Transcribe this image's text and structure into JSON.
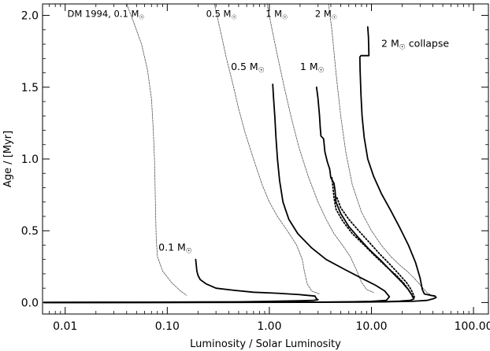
{
  "chart_data": {
    "type": "line",
    "xlabel": "Luminosity / Solar Luminosity",
    "ylabel": "Age / [Myr]",
    "xscale": "log",
    "xlim": [
      0.006,
      140
    ],
    "ylim": [
      -0.08,
      2.08
    ],
    "x_ticks": [
      {
        "value": 0.01,
        "label": "0.01"
      },
      {
        "value": 0.1,
        "label": "0.10"
      },
      {
        "value": 1,
        "label": "1.00"
      },
      {
        "value": 10,
        "label": "10.00"
      },
      {
        "value": 100,
        "label": "100.00"
      }
    ],
    "y_ticks": [
      {
        "value": 0.0,
        "label": "0.0"
      },
      {
        "value": 0.5,
        "label": "0.5"
      },
      {
        "value": 1.0,
        "label": "1.0"
      },
      {
        "value": 1.5,
        "label": "1.5"
      },
      {
        "value": 2.0,
        "label": "2.0"
      }
    ],
    "grid": false,
    "series": [
      {
        "style": "dm-thin",
        "points": [
          [
            0.04,
            2.08
          ],
          [
            0.047,
            1.95
          ],
          [
            0.056,
            1.8
          ],
          [
            0.064,
            1.62
          ],
          [
            0.07,
            1.42
          ],
          [
            0.073,
            1.2
          ],
          [
            0.075,
            1.0
          ],
          [
            0.076,
            0.8
          ],
          [
            0.077,
            0.6
          ],
          [
            0.078,
            0.45
          ],
          [
            0.08,
            0.32
          ],
          [
            0.09,
            0.22
          ],
          [
            0.11,
            0.14
          ],
          [
            0.135,
            0.08
          ],
          [
            0.155,
            0.05
          ]
        ]
      },
      {
        "style": "dm-thin",
        "points": [
          [
            0.29,
            2.08
          ],
          [
            0.33,
            1.9
          ],
          [
            0.38,
            1.7
          ],
          [
            0.44,
            1.52
          ],
          [
            0.5,
            1.35
          ],
          [
            0.58,
            1.18
          ],
          [
            0.7,
            1.0
          ],
          [
            0.85,
            0.82
          ],
          [
            1.0,
            0.7
          ],
          [
            1.2,
            0.6
          ],
          [
            1.5,
            0.5
          ],
          [
            1.85,
            0.4
          ],
          [
            2.1,
            0.3
          ],
          [
            2.2,
            0.22
          ],
          [
            2.35,
            0.13
          ],
          [
            2.6,
            0.08
          ],
          [
            3.1,
            0.06
          ]
        ]
      },
      {
        "style": "dm-thin",
        "points": [
          [
            0.95,
            2.08
          ],
          [
            1.05,
            1.92
          ],
          [
            1.2,
            1.72
          ],
          [
            1.4,
            1.5
          ],
          [
            1.65,
            1.28
          ],
          [
            1.95,
            1.08
          ],
          [
            2.4,
            0.88
          ],
          [
            3.0,
            0.7
          ],
          [
            3.6,
            0.58
          ],
          [
            4.3,
            0.48
          ],
          [
            5.2,
            0.4
          ],
          [
            6.2,
            0.32
          ],
          [
            7.2,
            0.22
          ],
          [
            8.0,
            0.14
          ],
          [
            9.0,
            0.09
          ],
          [
            10.5,
            0.07
          ]
        ]
      },
      {
        "style": "dm-thin",
        "points": [
          [
            3.8,
            2.08
          ],
          [
            4.1,
            1.9
          ],
          [
            4.5,
            1.6
          ],
          [
            5.0,
            1.3
          ],
          [
            5.6,
            1.05
          ],
          [
            6.5,
            0.82
          ],
          [
            8.0,
            0.63
          ],
          [
            10.0,
            0.5
          ],
          [
            12.5,
            0.4
          ],
          [
            15.5,
            0.32
          ],
          [
            19.0,
            0.26
          ],
          [
            23.0,
            0.21
          ],
          [
            27.0,
            0.16
          ],
          [
            31.0,
            0.11
          ],
          [
            35.0,
            0.07
          ],
          [
            40.0,
            0.045
          ]
        ]
      },
      {
        "style": "model-thick",
        "points": [
          [
            0.19,
            0.3
          ],
          [
            0.195,
            0.22
          ],
          [
            0.2,
            0.19
          ],
          [
            0.21,
            0.16
          ],
          [
            0.24,
            0.13
          ],
          [
            0.3,
            0.1
          ],
          [
            0.45,
            0.085
          ],
          [
            0.7,
            0.072
          ],
          [
            1.2,
            0.065
          ],
          [
            2.0,
            0.055
          ],
          [
            2.8,
            0.045
          ],
          [
            2.9,
            0.025
          ],
          [
            3.0,
            0.02
          ],
          [
            2.7,
            0.015
          ],
          [
            2.0,
            0.012
          ],
          [
            1.0,
            0.008
          ],
          [
            0.5,
            0.005
          ],
          [
            0.05,
            0.002
          ],
          [
            0.0062,
            0.001
          ]
        ]
      },
      {
        "style": "model-thick",
        "points": [
          [
            1.08,
            1.52
          ],
          [
            1.1,
            1.42
          ],
          [
            1.13,
            1.3
          ],
          [
            1.16,
            1.15
          ],
          [
            1.2,
            1.0
          ],
          [
            1.26,
            0.85
          ],
          [
            1.36,
            0.7
          ],
          [
            1.55,
            0.58
          ],
          [
            1.9,
            0.48
          ],
          [
            2.6,
            0.38
          ],
          [
            3.6,
            0.3
          ],
          [
            5.5,
            0.23
          ],
          [
            8.0,
            0.17
          ],
          [
            11.0,
            0.12
          ],
          [
            13.5,
            0.08
          ],
          [
            15.0,
            0.04
          ],
          [
            14.0,
            0.015
          ],
          [
            10.0,
            0.008
          ],
          [
            6.0,
            0.005
          ],
          [
            3.0,
            0.003
          ],
          [
            1.0,
            0.002
          ],
          [
            0.1,
            0.001
          ],
          [
            0.0062,
            0.0
          ]
        ]
      },
      {
        "style": "model-thick",
        "points": [
          [
            2.9,
            1.5
          ],
          [
            3.0,
            1.42
          ],
          [
            3.1,
            1.3
          ],
          [
            3.15,
            1.22
          ],
          [
            3.2,
            1.16
          ],
          [
            3.4,
            1.14
          ],
          [
            3.5,
            1.05
          ],
          [
            3.7,
            0.98
          ],
          [
            3.9,
            0.93
          ],
          [
            4.0,
            0.87
          ],
          [
            4.3,
            0.83
          ],
          [
            4.4,
            0.78
          ],
          [
            4.5,
            0.7
          ],
          [
            5.0,
            0.62
          ],
          [
            6.0,
            0.53
          ],
          [
            7.5,
            0.45
          ],
          [
            9.5,
            0.37
          ],
          [
            12.5,
            0.29
          ],
          [
            16.0,
            0.21
          ],
          [
            20.0,
            0.14
          ],
          [
            23.0,
            0.09
          ],
          [
            25.0,
            0.05
          ],
          [
            26.0,
            0.025
          ],
          [
            24.0,
            0.015
          ],
          [
            19.0,
            0.01
          ],
          [
            14.0,
            0.006
          ],
          [
            8.0,
            0.004
          ],
          [
            3.0,
            0.002
          ],
          [
            0.5,
            0.001
          ],
          [
            0.0062,
            0.0
          ]
        ]
      },
      {
        "style": "model-dotted",
        "points": [
          [
            4.1,
            0.87
          ],
          [
            4.2,
            0.8
          ],
          [
            4.3,
            0.73
          ],
          [
            4.5,
            0.65
          ],
          [
            5.2,
            0.57
          ],
          [
            6.5,
            0.48
          ],
          [
            8.5,
            0.4
          ],
          [
            11.0,
            0.32
          ],
          [
            14.0,
            0.25
          ],
          [
            17.5,
            0.19
          ],
          [
            21.0,
            0.13
          ],
          [
            23.5,
            0.08
          ],
          [
            25.0,
            0.05
          ],
          [
            25.5,
            0.03
          ]
        ]
      },
      {
        "style": "model-dotted",
        "points": [
          [
            4.6,
            0.73
          ],
          [
            5.0,
            0.66
          ],
          [
            6.0,
            0.58
          ],
          [
            7.5,
            0.5
          ],
          [
            9.5,
            0.42
          ],
          [
            12.0,
            0.34
          ],
          [
            15.0,
            0.27
          ],
          [
            18.5,
            0.2
          ],
          [
            22.0,
            0.14
          ],
          [
            24.5,
            0.09
          ],
          [
            26.0,
            0.05
          ],
          [
            26.5,
            0.03
          ]
        ]
      },
      {
        "style": "model-thick",
        "points": [
          [
            9.2,
            1.92
          ],
          [
            9.35,
            1.85
          ],
          [
            9.4,
            1.79
          ],
          [
            9.45,
            1.72
          ],
          [
            8.9,
            1.72
          ],
          [
            7.9,
            1.72
          ],
          [
            7.7,
            1.71
          ],
          [
            7.75,
            1.62
          ],
          [
            7.9,
            1.45
          ],
          [
            8.1,
            1.3
          ],
          [
            8.5,
            1.15
          ],
          [
            9.2,
            1.0
          ],
          [
            10.5,
            0.88
          ],
          [
            12.5,
            0.76
          ],
          [
            15.5,
            0.64
          ],
          [
            19.0,
            0.52
          ],
          [
            23.0,
            0.4
          ],
          [
            27.0,
            0.28
          ],
          [
            30.0,
            0.17
          ],
          [
            31.5,
            0.09
          ],
          [
            33.0,
            0.06
          ],
          [
            38.0,
            0.05
          ],
          [
            42.0,
            0.045
          ],
          [
            43.0,
            0.035
          ],
          [
            40.0,
            0.025
          ],
          [
            35.0,
            0.015
          ],
          [
            25.0,
            0.008
          ],
          [
            10.0,
            0.004
          ],
          [
            2.0,
            0.002
          ],
          [
            0.2,
            0.001
          ],
          [
            0.0062,
            0.0
          ]
        ]
      }
    ],
    "annotations": [
      {
        "text": "DM 1994, 0.1 M",
        "sym": "☉",
        "x": 0.0105,
        "y": 1.99,
        "size": "small"
      },
      {
        "text": "0.5 M",
        "sym": "☉",
        "x": 0.24,
        "y": 1.99,
        "size": "small"
      },
      {
        "text": "1 M",
        "sym": "☉",
        "x": 0.92,
        "y": 1.99,
        "size": "small"
      },
      {
        "text": "2 M",
        "sym": "☉",
        "x": 2.8,
        "y": 1.99,
        "size": "small"
      },
      {
        "text": "2 M",
        "sym": "☉",
        "x": 12.5,
        "y": 1.78,
        "size": "normal",
        "suffix": " collapse"
      },
      {
        "text": "0.5 M",
        "sym": "☉",
        "x": 0.42,
        "y": 1.62,
        "size": "normal"
      },
      {
        "text": "1 M",
        "sym": "☉",
        "x": 2.0,
        "y": 1.62,
        "size": "normal"
      },
      {
        "text": "0.1 M",
        "sym": "☉",
        "x": 0.082,
        "y": 0.36,
        "size": "normal"
      }
    ]
  }
}
